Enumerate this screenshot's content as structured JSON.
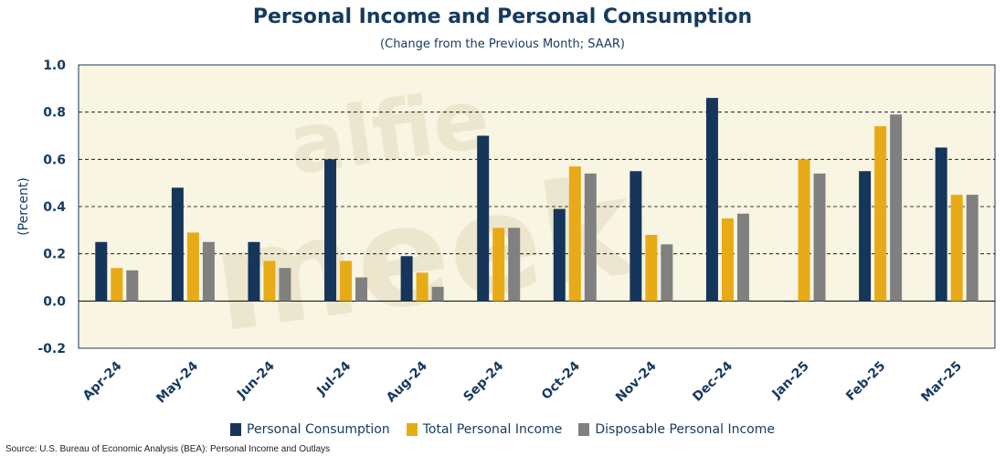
{
  "chart_data": {
    "type": "bar",
    "title": "Personal Income and Personal Consumption",
    "subtitle": "(Change from the Previous Month; SAAR)",
    "ylabel": "(Percent)",
    "xlabel": "",
    "ylim": [
      -0.2,
      1.0
    ],
    "yticks": [
      "1.0",
      "0.8",
      "0.6",
      "0.4",
      "0.2",
      "0.0",
      "-0.2"
    ],
    "grid": true,
    "legend_position": "bottom",
    "watermark": "alfie meek",
    "categories": [
      "Apr-24",
      "May-24",
      "Jun-24",
      "Jul-24",
      "Aug-24",
      "Sep-24",
      "Oct-24",
      "Nov-24",
      "Dec-24",
      "Jan-25",
      "Feb-25",
      "Mar-25"
    ],
    "series": [
      {
        "name": "Personal Consumption",
        "color": "#15365a",
        "values": [
          0.25,
          0.48,
          0.25,
          0.6,
          0.19,
          0.7,
          0.39,
          0.55,
          0.86,
          0.0,
          0.55,
          0.65
        ]
      },
      {
        "name": "Total Personal Income",
        "color": "#e8ab17",
        "values": [
          0.14,
          0.29,
          0.17,
          0.17,
          0.12,
          0.31,
          0.57,
          0.28,
          0.35,
          0.6,
          0.74,
          0.45
        ]
      },
      {
        "name": "Disposable Personal Income",
        "color": "#808080",
        "values": [
          0.13,
          0.25,
          0.14,
          0.1,
          0.06,
          0.31,
          0.54,
          0.24,
          0.37,
          0.54,
          0.79,
          0.45
        ]
      }
    ],
    "source": "Source: U.S. Bureau of Economic Analysis (BEA): Personal Income and Outlays"
  }
}
